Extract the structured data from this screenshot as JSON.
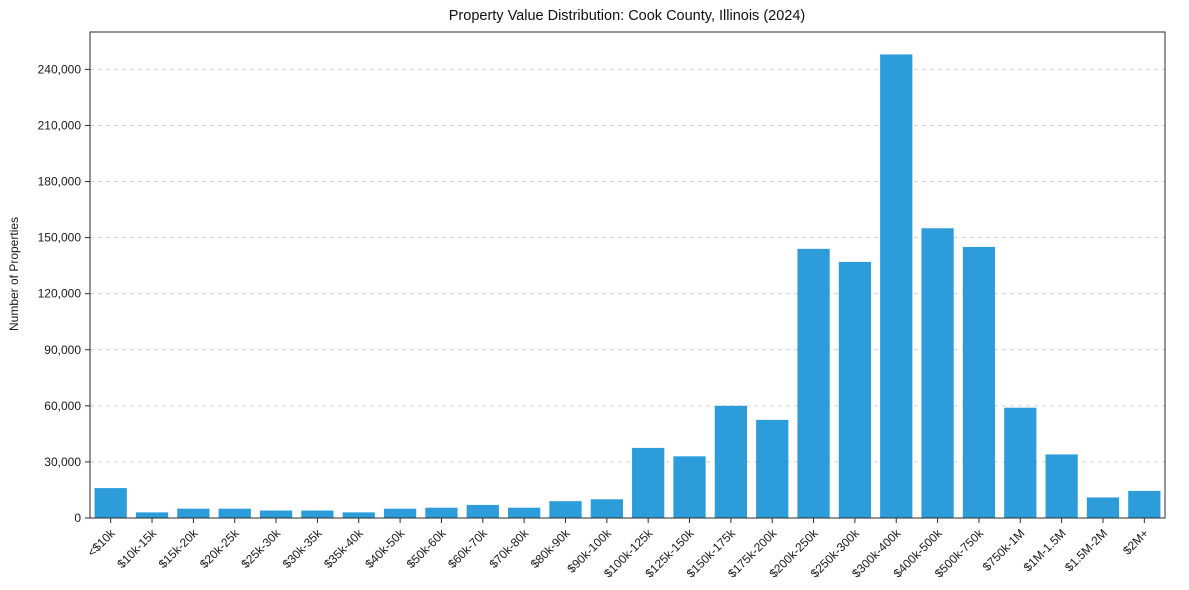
{
  "chart_data": {
    "type": "bar",
    "title": "Property Value Distribution: Cook County, Illinois (2024)",
    "xlabel": "",
    "ylabel": "Number of Properties",
    "categories": [
      "<$10k",
      "$10k-15k",
      "$15k-20k",
      "$20k-25k",
      "$25k-30k",
      "$30k-35k",
      "$35k-40k",
      "$40k-50k",
      "$50k-60k",
      "$60k-70k",
      "$70k-80k",
      "$80k-90k",
      "$90k-100k",
      "$100k-125k",
      "$125k-150k",
      "$150k-175k",
      "$175k-200k",
      "$200k-250k",
      "$250k-300k",
      "$300k-400k",
      "$400k-500k",
      "$500k-750k",
      "$750k-1M",
      "$1M-1.5M",
      "$1.5M-2M",
      "$2M+"
    ],
    "values": [
      16000,
      3000,
      5000,
      5000,
      4000,
      4000,
      3000,
      5000,
      5500,
      7000,
      5500,
      9000,
      10000,
      37500,
      33000,
      60000,
      52500,
      144000,
      137000,
      248000,
      155000,
      145000,
      59000,
      34000,
      11000,
      14500
    ],
    "ylim": [
      0,
      260000
    ],
    "yticks": [
      0,
      30000,
      60000,
      90000,
      120000,
      150000,
      180000,
      210000,
      240000
    ],
    "grid": "horizontal-dashed",
    "legend": "none",
    "bar_color": "#2D9CDB",
    "grid_color": "#cfcfcf",
    "axis_color": "#2b2b2b",
    "text_color": "#1a1a1a"
  }
}
